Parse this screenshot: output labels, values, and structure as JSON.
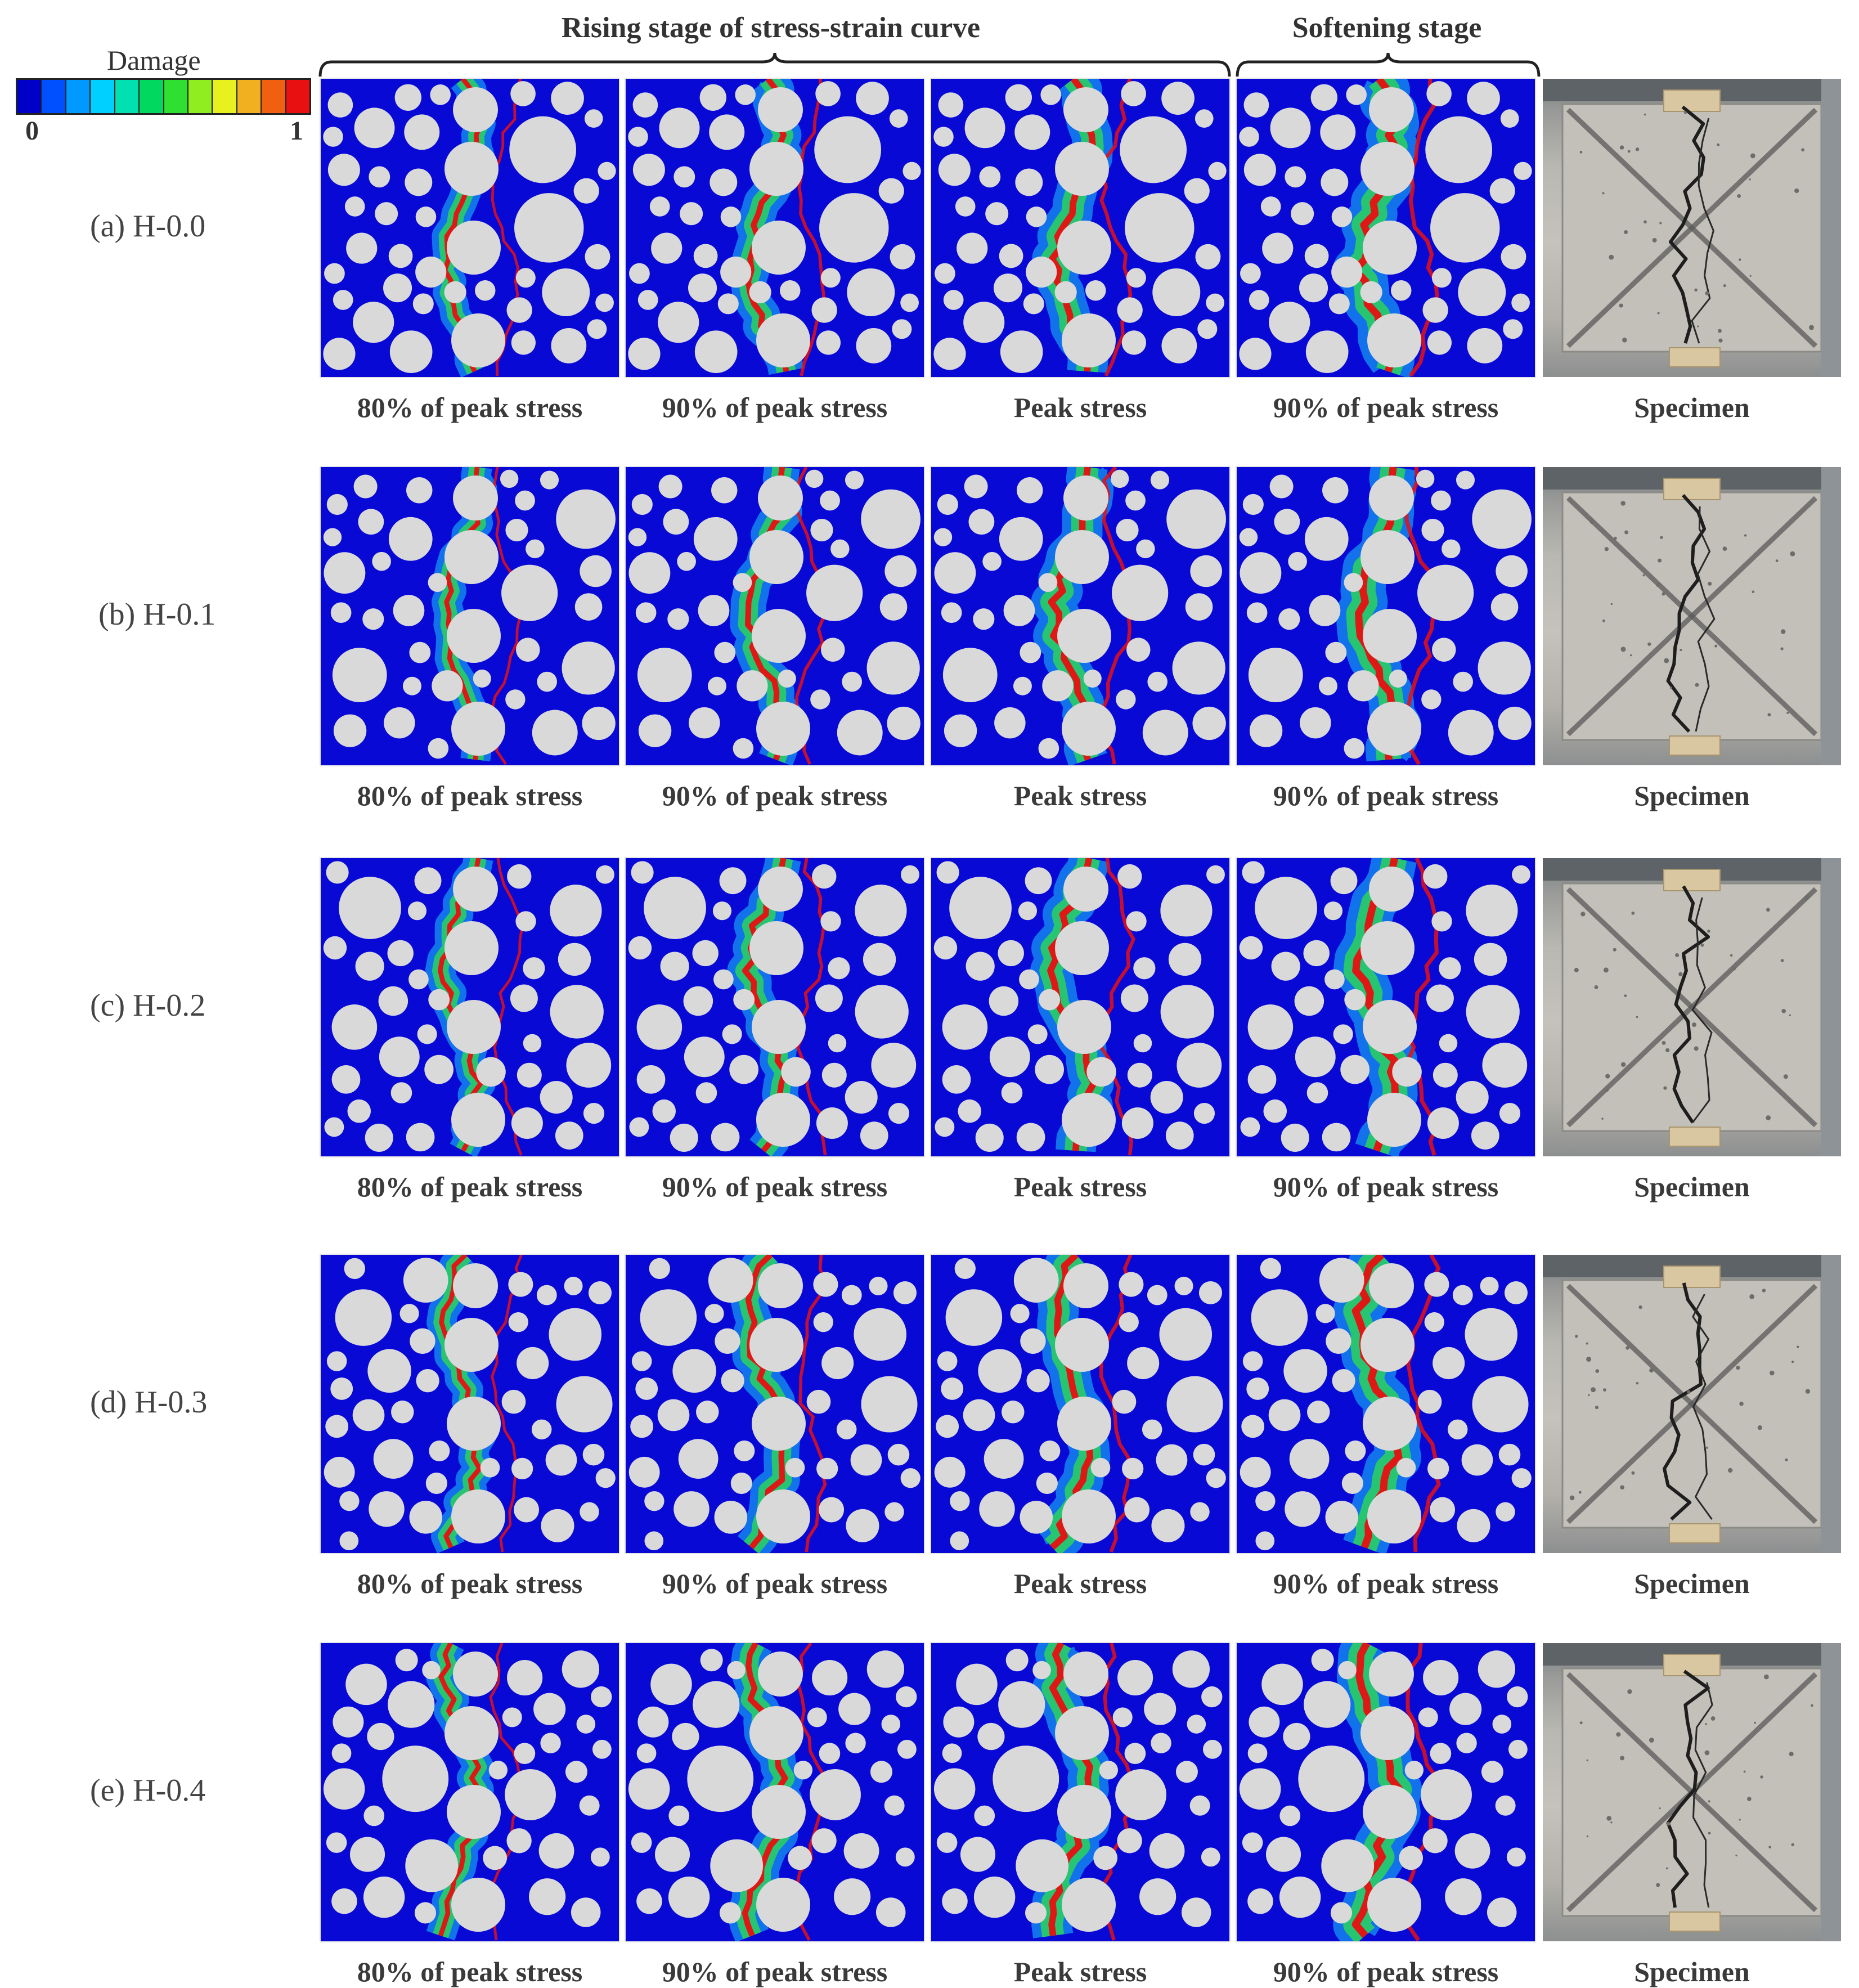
{
  "legend": {
    "title": "Damage",
    "min": "0",
    "max": "1",
    "colors": [
      "#0000c8",
      "#0050ff",
      "#0099ff",
      "#00d0ff",
      "#00e0b0",
      "#00d860",
      "#30e030",
      "#90ee20",
      "#e8f020",
      "#f0b020",
      "#f06010",
      "#e81010"
    ]
  },
  "stages": {
    "rising": "Rising stage of stress-strain curve",
    "softening": "Softening stage"
  },
  "rows": [
    {
      "label": "(a) H-0.0",
      "captions": [
        "80% of peak stress",
        "90% of peak stress",
        "Peak stress",
        "90% of peak stress",
        "Specimen"
      ]
    },
    {
      "label": "(b) H-0.1",
      "captions": [
        "80% of peak stress",
        "90% of peak stress",
        "Peak stress",
        "90% of peak stress",
        "Specimen"
      ]
    },
    {
      "label": "(c) H-0.2",
      "captions": [
        "80% of peak stress",
        "90% of peak stress",
        "Peak stress",
        "90% of peak stress",
        "Specimen"
      ]
    },
    {
      "label": "(d) H-0.3",
      "captions": [
        "80% of peak stress",
        "90% of peak stress",
        "Peak stress",
        "90% of peak stress",
        "Specimen"
      ]
    },
    {
      "label": "(e) H-0.4",
      "captions": [
        "80% of peak stress",
        "90% of peak stress",
        "Peak stress",
        "90% of peak stress",
        "Specimen"
      ]
    }
  ],
  "colors": {
    "matrix": "#0909d6",
    "aggregate": "#d9d9d9",
    "damage_low": "#19c9ff",
    "damage_mid": "#2fe04a",
    "damage_high": "#e81010"
  }
}
